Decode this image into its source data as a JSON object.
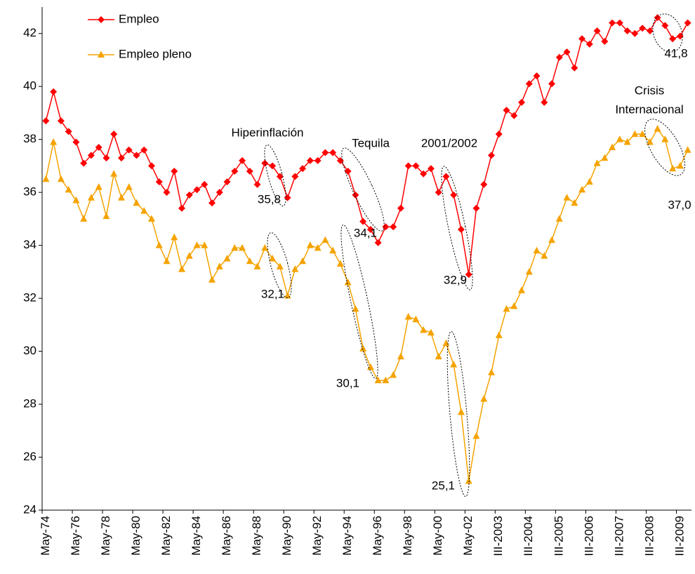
{
  "chart_data": {
    "type": "line",
    "categories": [
      "May-74",
      null,
      null,
      null,
      "May-76",
      null,
      null,
      null,
      "May-78",
      null,
      null,
      null,
      "May-80",
      null,
      null,
      null,
      "May-82",
      null,
      null,
      null,
      "May-84",
      null,
      null,
      null,
      "May-86",
      null,
      null,
      null,
      "May-88",
      null,
      null,
      null,
      "May-90",
      null,
      null,
      null,
      "May-92",
      null,
      null,
      null,
      "May-94",
      null,
      null,
      null,
      "May-96",
      null,
      null,
      null,
      "May-98",
      null,
      null,
      null,
      "May-00",
      null,
      null,
      null,
      "May-02",
      null,
      null,
      null,
      "III-2003",
      null,
      null,
      null,
      "III-2004",
      null,
      null,
      null,
      "III-2005",
      null,
      null,
      null,
      "III-2006",
      null,
      null,
      null,
      "III-2007",
      null,
      null,
      null,
      "III-2008",
      null,
      null,
      null,
      "III-2009",
      null
    ],
    "series": [
      {
        "name": "Empleo",
        "color": "#ff0000",
        "marker": "diamond",
        "values": [
          38.7,
          39.8,
          38.7,
          38.3,
          37.9,
          37.1,
          37.4,
          37.7,
          37.3,
          38.2,
          37.3,
          37.6,
          37.4,
          37.6,
          37.0,
          36.4,
          36.0,
          36.8,
          35.4,
          35.9,
          36.1,
          36.3,
          35.6,
          36.0,
          36.4,
          36.8,
          37.2,
          36.8,
          36.3,
          37.1,
          37.0,
          36.6,
          35.8,
          36.6,
          36.9,
          37.2,
          37.2,
          37.5,
          37.5,
          37.2,
          36.8,
          35.9,
          34.9,
          34.6,
          34.1,
          34.7,
          34.7,
          35.4,
          37.0,
          37.0,
          36.7,
          36.9,
          36.0,
          36.6,
          35.9,
          34.6,
          32.9,
          35.4,
          36.3,
          37.4,
          38.2,
          39.1,
          38.9,
          39.4,
          40.1,
          40.4,
          39.4,
          40.1,
          41.1,
          41.3,
          40.7,
          41.8,
          41.6,
          42.1,
          41.7,
          42.4,
          42.4,
          42.1,
          42.0,
          42.2,
          42.1,
          42.6,
          42.3,
          41.8,
          41.9,
          42.4
        ]
      },
      {
        "name": "Empleo pleno",
        "color": "#f5a300",
        "marker": "triangle",
        "values": [
          36.5,
          37.9,
          36.5,
          36.1,
          35.7,
          35.0,
          35.8,
          36.2,
          35.1,
          36.7,
          35.8,
          36.2,
          35.6,
          35.3,
          35.0,
          34.0,
          33.4,
          34.3,
          33.1,
          33.6,
          34.0,
          34.0,
          32.7,
          33.2,
          33.5,
          33.9,
          33.9,
          33.4,
          33.2,
          33.9,
          33.5,
          33.2,
          32.1,
          33.1,
          33.4,
          34.0,
          33.9,
          34.2,
          33.8,
          33.3,
          32.6,
          31.6,
          30.1,
          29.4,
          28.9,
          28.9,
          29.1,
          29.8,
          31.3,
          31.2,
          30.8,
          30.7,
          29.8,
          30.3,
          29.5,
          27.7,
          25.1,
          26.8,
          28.2,
          29.2,
          30.6,
          31.6,
          31.7,
          32.3,
          33.0,
          33.8,
          33.6,
          34.2,
          35.0,
          35.8,
          35.6,
          36.1,
          36.4,
          37.1,
          37.3,
          37.7,
          38.0,
          37.9,
          38.2,
          38.2,
          37.9,
          38.4,
          38.0,
          36.9,
          37.0,
          37.6
        ]
      }
    ],
    "ylim": [
      24,
      43
    ],
    "yticks": [
      24,
      26,
      28,
      30,
      32,
      34,
      36,
      38,
      40,
      42
    ],
    "grid": false,
    "legend": "top-left",
    "annotations": [
      "Hiperinflación",
      "Tequila",
      "2001/2002",
      "Crisis",
      "Internacional",
      "35,8",
      "32,1",
      "34,1",
      "30,1",
      "32,9",
      "25,1",
      "41,8",
      "37,0"
    ]
  }
}
